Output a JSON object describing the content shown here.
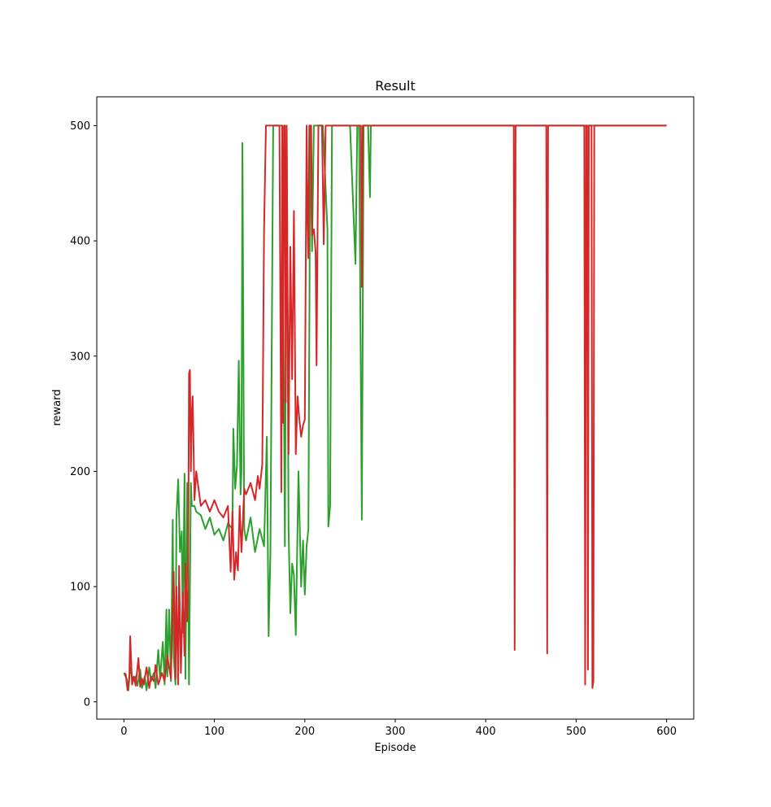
{
  "chart_data": {
    "type": "line",
    "title": "Result",
    "xlabel": "Episode",
    "ylabel": "reward",
    "xlim": [
      -30,
      630
    ],
    "ylim": [
      -15,
      525
    ],
    "xticks": [
      0,
      100,
      200,
      300,
      400,
      500,
      600
    ],
    "yticks": [
      0,
      100,
      200,
      300,
      400,
      500
    ],
    "grid": false,
    "legend": "none",
    "colors": {
      "green": "#2ca02c",
      "red": "#d62728"
    },
    "series": [
      {
        "color": "#2ca02c",
        "x": [
          0,
          3,
          5,
          7,
          10,
          13,
          15,
          18,
          20,
          23,
          25,
          28,
          30,
          33,
          35,
          38,
          40,
          43,
          45,
          47,
          48,
          50,
          52,
          54,
          55,
          57,
          58,
          60,
          62,
          64,
          65,
          67,
          68,
          70,
          72,
          74,
          75,
          78,
          80,
          85,
          90,
          95,
          100,
          105,
          110,
          115,
          120,
          121,
          123,
          125,
          127,
          129,
          130,
          131,
          133,
          135,
          140,
          145,
          150,
          155,
          157,
          158,
          160,
          162,
          165,
          170,
          175,
          178,
          180,
          182,
          184,
          186,
          188,
          190,
          193,
          196,
          198,
          200,
          202,
          204,
          206,
          208,
          210,
          215,
          220,
          225,
          226,
          228,
          230,
          240,
          250,
          256,
          258,
          260,
          263,
          265,
          267,
          270,
          272,
          273,
          275,
          280,
          300,
          400,
          500,
          600
        ],
        "y": [
          25,
          20,
          10,
          30,
          18,
          22,
          14,
          28,
          12,
          22,
          10,
          30,
          18,
          25,
          12,
          45,
          20,
          52,
          15,
          80,
          22,
          80,
          18,
          158,
          40,
          15,
          160,
          193,
          130,
          148,
          60,
          198,
          20,
          190,
          15,
          190,
          170,
          170,
          165,
          162,
          150,
          160,
          145,
          150,
          140,
          155,
          150,
          237,
          185,
          205,
          296,
          180,
          200,
          485,
          150,
          140,
          160,
          130,
          150,
          135,
          200,
          230,
          57,
          130,
          500,
          500,
          500,
          135,
          500,
          150,
          77,
          120,
          110,
          58,
          200,
          100,
          140,
          93,
          135,
          150,
          500,
          391,
          500,
          500,
          500,
          410,
          152,
          170,
          500,
          500,
          500,
          380,
          500,
          500,
          158,
          500,
          500,
          500,
          438,
          500,
          500,
          500,
          500,
          500,
          500,
          500
        ]
      },
      {
        "color": "#d62728",
        "x": [
          0,
          2,
          4,
          6,
          7,
          9,
          11,
          13,
          16,
          18,
          20,
          22,
          25,
          28,
          30,
          33,
          35,
          38,
          42,
          45,
          48,
          52,
          55,
          57,
          58,
          60,
          61,
          63,
          65,
          67,
          68,
          70,
          71,
          72,
          73,
          74,
          75,
          76,
          78,
          80,
          85,
          90,
          95,
          100,
          105,
          110,
          115,
          118,
          120,
          122,
          124,
          126,
          128,
          130,
          133,
          135,
          140,
          145,
          148,
          150,
          153,
          155,
          157,
          160,
          165,
          170,
          172,
          174,
          175,
          176,
          177,
          178,
          179,
          180,
          182,
          184,
          186,
          188,
          190,
          192,
          194,
          196,
          198,
          200,
          202,
          203,
          204,
          205,
          206,
          207,
          208,
          210,
          212,
          213,
          215,
          217,
          219,
          221,
          223,
          225,
          230,
          260,
          262,
          263,
          264,
          265,
          266,
          267,
          270,
          300,
          430,
          431,
          432,
          433,
          434,
          466,
          467,
          468,
          469,
          470,
          508,
          509,
          510,
          511,
          512,
          513,
          514,
          515,
          516,
          517,
          518,
          519,
          520,
          522,
          540,
          600
        ],
        "y": [
          25,
          24,
          10,
          22,
          57,
          15,
          22,
          14,
          38,
          13,
          20,
          15,
          30,
          12,
          22,
          18,
          32,
          15,
          25,
          18,
          40,
          20,
          113,
          20,
          100,
          15,
          118,
          25,
          95,
          40,
          120,
          70,
          100,
          285,
          288,
          200,
          250,
          265,
          175,
          200,
          170,
          175,
          165,
          175,
          165,
          160,
          170,
          113,
          165,
          106,
          130,
          114,
          170,
          130,
          185,
          180,
          190,
          175,
          196,
          185,
          206,
          410,
          500,
          500,
          500,
          500,
          500,
          182,
          500,
          242,
          500,
          500,
          260,
          500,
          215,
          395,
          280,
          426,
          215,
          265,
          245,
          230,
          240,
          245,
          500,
          420,
          385,
          500,
          500,
          500,
          405,
          410,
          390,
          292,
          500,
          500,
          500,
          397,
          500,
          500,
          500,
          500,
          500,
          360,
          500,
          500,
          500,
          500,
          500,
          500,
          500,
          500,
          45,
          500,
          500,
          500,
          500,
          42,
          500,
          500,
          500,
          500,
          15,
          500,
          500,
          28,
          500,
          500,
          500,
          500,
          12,
          18,
          500,
          500,
          500,
          500
        ]
      }
    ]
  }
}
